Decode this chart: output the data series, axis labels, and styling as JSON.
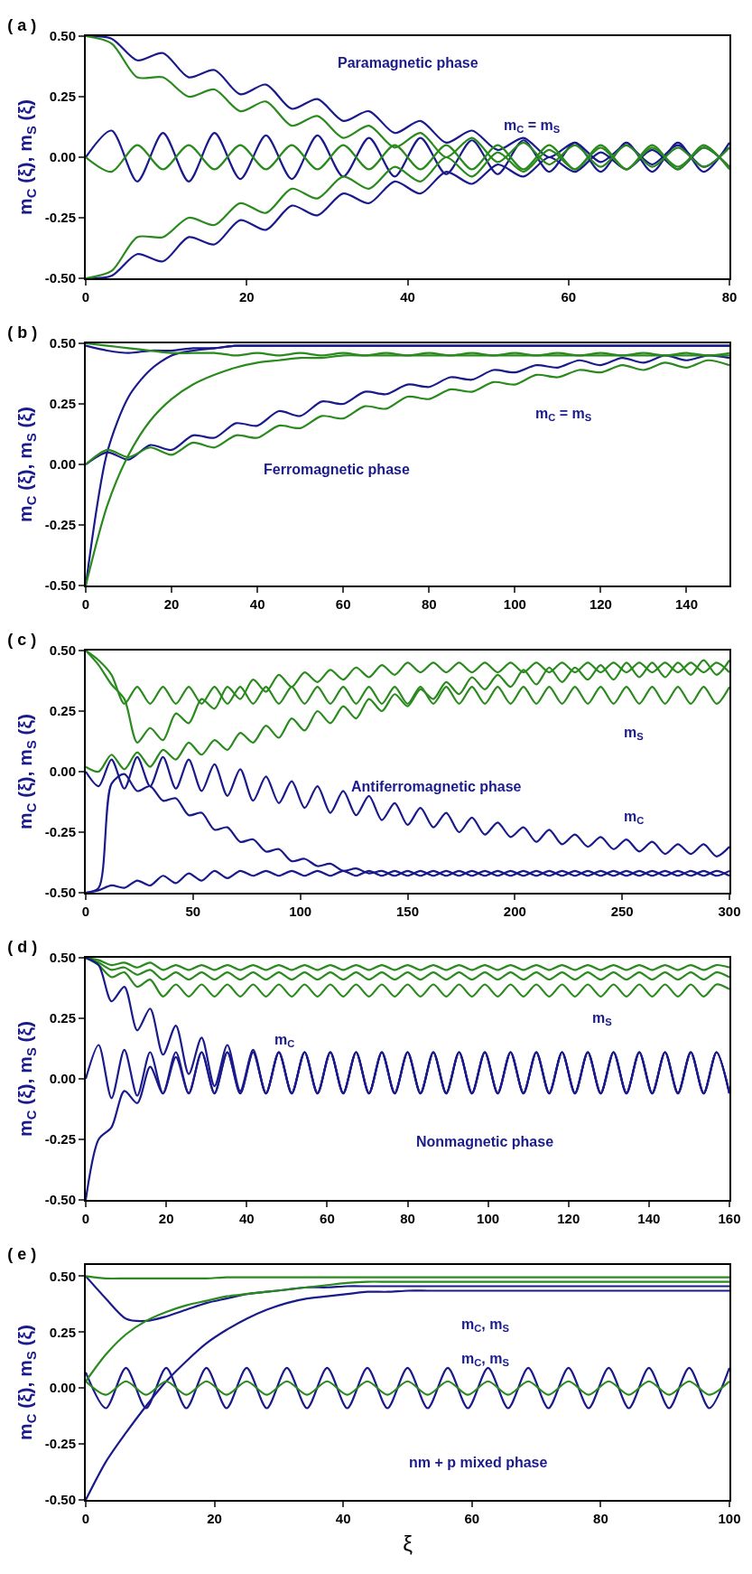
{
  "chart_data": [
    {
      "type": "line",
      "title": "( a )",
      "ylabel": "m$_{C}$ (ξ), m$_{S}$ (ξ)",
      "xlim": [
        0,
        80
      ],
      "xticks": [
        0,
        20,
        40,
        60,
        80
      ],
      "ylim": [
        -0.5,
        0.5
      ],
      "yticks": [
        {
          "value": -0.5,
          "label": "-0.50"
        },
        {
          "value": -0.25,
          "label": "-0.25"
        },
        {
          "value": 0,
          "label": "0.00"
        },
        {
          "value": 0.25,
          "label": "0.25"
        },
        {
          "value": 0.5,
          "label": "0.50"
        }
      ],
      "x": [
        0,
        3.2,
        6.4,
        9.6,
        12.8,
        16,
        19.2,
        22.4,
        25.6,
        28.8,
        32,
        35.2,
        38.4,
        41.6,
        44.8,
        48,
        51.2,
        54.4,
        57.6,
        60.8,
        64,
        67.2,
        70.4,
        73.6,
        76.8,
        80
      ],
      "series": [
        {
          "color": "#1a1a8c",
          "values": [
            0.5,
            0.49,
            0.4,
            0.43,
            0.33,
            0.36,
            0.26,
            0.3,
            0.2,
            0.24,
            0.15,
            0.19,
            0.1,
            0.15,
            0.06,
            0.11,
            0.03,
            0.08,
            0,
            0.06,
            -0.02,
            0.05,
            -0.03,
            0.05,
            -0.04,
            0.04
          ]
        },
        {
          "color": "#1a1a8c",
          "values": [
            -0.5,
            -0.49,
            -0.4,
            -0.43,
            -0.33,
            -0.36,
            -0.26,
            -0.3,
            -0.2,
            -0.24,
            -0.15,
            -0.19,
            -0.1,
            -0.15,
            -0.06,
            -0.11,
            -0.03,
            -0.08,
            0,
            -0.06,
            0.02,
            -0.05,
            0.03,
            -0.05,
            0.04,
            -0.04
          ]
        },
        {
          "color": "#1a1a8c",
          "values": [
            0,
            0.11,
            -0.1,
            0.1,
            -0.1,
            0.1,
            -0.09,
            0.09,
            -0.09,
            0.09,
            -0.08,
            0.08,
            -0.08,
            0.08,
            -0.07,
            0.07,
            -0.07,
            0.07,
            -0.06,
            0.06,
            -0.06,
            0.06,
            -0.06,
            0.06,
            -0.06,
            0.06
          ]
        },
        {
          "color": "#2a8a1e",
          "values": [
            0.5,
            0.47,
            0.33,
            0.33,
            0.25,
            0.28,
            0.19,
            0.23,
            0.13,
            0.17,
            0.08,
            0.13,
            0.04,
            0.1,
            0,
            0.08,
            -0.02,
            0.06,
            -0.03,
            0.05,
            -0.04,
            0.05,
            -0.04,
            0.04,
            -0.04,
            0.04
          ]
        },
        {
          "color": "#2a8a1e",
          "values": [
            -0.5,
            -0.47,
            -0.33,
            -0.33,
            -0.25,
            -0.28,
            -0.19,
            -0.23,
            -0.13,
            -0.17,
            -0.08,
            -0.13,
            -0.04,
            -0.1,
            0,
            -0.08,
            0.02,
            -0.06,
            0.03,
            -0.05,
            0.04,
            -0.05,
            0.04,
            -0.04,
            0.04,
            -0.04
          ]
        },
        {
          "color": "#2a8a1e",
          "values": [
            0,
            -0.06,
            0.05,
            -0.05,
            0.05,
            -0.05,
            0.05,
            -0.05,
            0.05,
            -0.05,
            0.05,
            -0.05,
            0.05,
            -0.05,
            0.05,
            -0.05,
            0.05,
            -0.05,
            0.05,
            -0.05,
            0.05,
            -0.05,
            0.05,
            -0.05,
            0.05,
            -0.05
          ]
        }
      ],
      "annotations": [
        "Paramagnetic phase",
        "m$_{C}$ = m$_{S}$"
      ]
    },
    {
      "type": "line",
      "title": "( b )",
      "ylabel": "m$_{C}$ (ξ), m$_{S}$ (ξ)",
      "xlim": [
        0,
        150
      ],
      "xticks": [
        0,
        20,
        40,
        60,
        80,
        100,
        120,
        140
      ],
      "ylim": [
        -0.5,
        0.5
      ],
      "yticks": [
        {
          "value": -0.5,
          "label": "-0.50"
        },
        {
          "value": -0.25,
          "label": "-0.25"
        },
        {
          "value": 0,
          "label": "0.00"
        },
        {
          "value": 0.25,
          "label": "0.25"
        },
        {
          "value": 0.5,
          "label": "0.50"
        }
      ],
      "x": [
        0,
        5,
        10,
        15,
        20,
        25,
        30,
        35,
        40,
        45,
        50,
        55,
        60,
        65,
        70,
        75,
        80,
        85,
        90,
        95,
        100,
        105,
        110,
        115,
        120,
        125,
        130,
        135,
        140,
        145,
        150
      ],
      "series": [
        {
          "color": "#1a1a8c",
          "values": [
            -0.5,
            0.05,
            0.28,
            0.39,
            0.45,
            0.47,
            0.48,
            0.49,
            0.49,
            0.49,
            0.49,
            0.49,
            0.49,
            0.49,
            0.49,
            0.49,
            0.49,
            0.49,
            0.49,
            0.49,
            0.49,
            0.49,
            0.49,
            0.49,
            0.49,
            0.49,
            0.49,
            0.49,
            0.49,
            0.49,
            0.49
          ]
        },
        {
          "color": "#1a1a8c",
          "values": [
            0.49,
            0.47,
            0.46,
            0.47,
            0.47,
            0.48,
            0.48,
            0.49,
            0.49,
            0.49,
            0.49,
            0.49,
            0.49,
            0.49,
            0.49,
            0.49,
            0.49,
            0.49,
            0.49,
            0.49,
            0.49,
            0.49,
            0.49,
            0.49,
            0.49,
            0.49,
            0.49,
            0.49,
            0.49,
            0.49,
            0.49
          ]
        },
        {
          "color": "#1a1a8c",
          "values": [
            0,
            0.05,
            0.02,
            0.08,
            0.06,
            0.12,
            0.11,
            0.17,
            0.16,
            0.22,
            0.2,
            0.26,
            0.25,
            0.3,
            0.29,
            0.33,
            0.32,
            0.36,
            0.35,
            0.39,
            0.38,
            0.41,
            0.4,
            0.43,
            0.41,
            0.44,
            0.42,
            0.45,
            0.43,
            0.45,
            0.44
          ]
        },
        {
          "color": "#2a8a1e",
          "values": [
            -0.5,
            -0.17,
            0.04,
            0.18,
            0.27,
            0.33,
            0.37,
            0.4,
            0.42,
            0.43,
            0.44,
            0.44,
            0.45,
            0.45,
            0.45,
            0.45,
            0.45,
            0.45,
            0.45,
            0.45,
            0.45,
            0.45,
            0.45,
            0.45,
            0.45,
            0.45,
            0.45,
            0.45,
            0.45,
            0.45,
            0.45
          ]
        },
        {
          "color": "#2a8a1e",
          "values": [
            0.5,
            0.49,
            0.48,
            0.47,
            0.46,
            0.46,
            0.46,
            0.45,
            0.46,
            0.45,
            0.46,
            0.45,
            0.46,
            0.45,
            0.46,
            0.45,
            0.46,
            0.45,
            0.46,
            0.45,
            0.46,
            0.45,
            0.46,
            0.45,
            0.46,
            0.45,
            0.46,
            0.45,
            0.46,
            0.45,
            0.46
          ]
        },
        {
          "color": "#2a8a1e",
          "values": [
            0,
            0.06,
            0.03,
            0.07,
            0.04,
            0.09,
            0.07,
            0.12,
            0.11,
            0.16,
            0.15,
            0.2,
            0.19,
            0.24,
            0.23,
            0.28,
            0.27,
            0.31,
            0.3,
            0.34,
            0.33,
            0.37,
            0.36,
            0.39,
            0.38,
            0.41,
            0.39,
            0.42,
            0.4,
            0.43,
            0.41
          ]
        }
      ],
      "annotations": [
        "Ferromagnetic phase",
        "m$_{C}$ = m$_{S}$"
      ]
    },
    {
      "type": "line",
      "title": "( c )",
      "ylabel": "m$_{C}$ (ξ), m$_{S}$ (ξ)",
      "xlim": [
        0,
        300
      ],
      "xticks": [
        0,
        50,
        100,
        150,
        200,
        250,
        300
      ],
      "ylim": [
        -0.5,
        0.5
      ],
      "yticks": [
        {
          "value": -0.5,
          "label": "-0.50"
        },
        {
          "value": -0.25,
          "label": "-0.25"
        },
        {
          "value": 0,
          "label": "0.00"
        },
        {
          "value": 0.25,
          "label": "0.25"
        },
        {
          "value": 0.5,
          "label": "0.50"
        }
      ],
      "x": [
        0,
        6,
        12,
        18,
        24,
        30,
        36,
        42,
        48,
        54,
        60,
        66,
        72,
        78,
        84,
        90,
        96,
        102,
        108,
        114,
        120,
        126,
        132,
        138,
        144,
        150,
        156,
        162,
        168,
        174,
        180,
        186,
        192,
        198,
        204,
        210,
        216,
        222,
        228,
        234,
        240,
        246,
        252,
        258,
        264,
        270,
        276,
        282,
        288,
        294,
        300
      ],
      "series": [
        {
          "color": "#2a8a1e",
          "values": [
            0.5,
            0.46,
            0.4,
            0.28,
            0.35,
            0.28,
            0.35,
            0.28,
            0.35,
            0.28,
            0.35,
            0.28,
            0.35,
            0.28,
            0.35,
            0.28,
            0.35,
            0.28,
            0.35,
            0.28,
            0.35,
            0.28,
            0.35,
            0.28,
            0.35,
            0.28,
            0.35,
            0.28,
            0.35,
            0.28,
            0.35,
            0.28,
            0.35,
            0.28,
            0.35,
            0.28,
            0.35,
            0.28,
            0.35,
            0.28,
            0.35,
            0.28,
            0.35,
            0.28,
            0.35,
            0.28,
            0.35,
            0.28,
            0.35,
            0.28,
            0.35
          ]
        },
        {
          "color": "#2a8a1e",
          "values": [
            0.5,
            0.44,
            0.36,
            0.3,
            0.12,
            0.18,
            0.13,
            0.24,
            0.2,
            0.3,
            0.26,
            0.35,
            0.3,
            0.38,
            0.33,
            0.4,
            0.35,
            0.41,
            0.37,
            0.42,
            0.38,
            0.43,
            0.39,
            0.44,
            0.4,
            0.45,
            0.41,
            0.45,
            0.41,
            0.45,
            0.41,
            0.45,
            0.41,
            0.45,
            0.41,
            0.45,
            0.41,
            0.45,
            0.41,
            0.45,
            0.41,
            0.45,
            0.41,
            0.45,
            0.41,
            0.45,
            0.41,
            0.45,
            0.41,
            0.45,
            0.41
          ]
        },
        {
          "color": "#2a8a1e",
          "values": [
            0.02,
            0,
            0.07,
            0.01,
            0.08,
            0.02,
            0.09,
            0.05,
            0.12,
            0.07,
            0.13,
            0.09,
            0.16,
            0.12,
            0.19,
            0.14,
            0.22,
            0.17,
            0.25,
            0.2,
            0.27,
            0.22,
            0.3,
            0.25,
            0.32,
            0.27,
            0.34,
            0.3,
            0.37,
            0.32,
            0.39,
            0.34,
            0.4,
            0.35,
            0.42,
            0.36,
            0.43,
            0.37,
            0.43,
            0.38,
            0.44,
            0.38,
            0.45,
            0.39,
            0.45,
            0.39,
            0.45,
            0.4,
            0.46,
            0.4,
            0.46
          ]
        },
        {
          "color": "#1a1a8c",
          "values": [
            -0.5,
            -0.48,
            -0.05,
            -0.01,
            -0.08,
            -0.06,
            -0.12,
            -0.11,
            -0.18,
            -0.17,
            -0.24,
            -0.23,
            -0.29,
            -0.28,
            -0.33,
            -0.32,
            -0.37,
            -0.36,
            -0.39,
            -0.38,
            -0.41,
            -0.4,
            -0.42,
            -0.41,
            -0.43,
            -0.41,
            -0.43,
            -0.41,
            -0.43,
            -0.41,
            -0.43,
            -0.41,
            -0.43,
            -0.41,
            -0.43,
            -0.41,
            -0.43,
            -0.41,
            -0.43,
            -0.41,
            -0.43,
            -0.41,
            -0.43,
            -0.41,
            -0.43,
            -0.41,
            -0.43,
            -0.41,
            -0.43,
            -0.41,
            -0.43
          ]
        },
        {
          "color": "#1a1a8c",
          "values": [
            0,
            -0.06,
            0.05,
            -0.07,
            0.06,
            -0.06,
            0.06,
            -0.07,
            0.05,
            -0.08,
            0.03,
            -0.1,
            0.01,
            -0.12,
            -0.02,
            -0.13,
            -0.04,
            -0.15,
            -0.06,
            -0.17,
            -0.08,
            -0.18,
            -0.1,
            -0.2,
            -0.13,
            -0.22,
            -0.15,
            -0.23,
            -0.17,
            -0.25,
            -0.19,
            -0.26,
            -0.21,
            -0.27,
            -0.23,
            -0.29,
            -0.24,
            -0.3,
            -0.26,
            -0.31,
            -0.27,
            -0.32,
            -0.28,
            -0.33,
            -0.29,
            -0.34,
            -0.3,
            -0.34,
            -0.3,
            -0.35,
            -0.31
          ]
        },
        {
          "color": "#1a1a8c",
          "values": [
            -0.5,
            -0.49,
            -0.47,
            -0.48,
            -0.45,
            -0.47,
            -0.43,
            -0.46,
            -0.42,
            -0.45,
            -0.41,
            -0.44,
            -0.41,
            -0.43,
            -0.41,
            -0.43,
            -0.41,
            -0.43,
            -0.41,
            -0.43,
            -0.41,
            -0.43,
            -0.41,
            -0.43,
            -0.41,
            -0.43,
            -0.41,
            -0.43,
            -0.41,
            -0.43,
            -0.41,
            -0.43,
            -0.41,
            -0.43,
            -0.41,
            -0.43,
            -0.41,
            -0.43,
            -0.41,
            -0.43,
            -0.41,
            -0.43,
            -0.41,
            -0.43,
            -0.41,
            -0.43,
            -0.41,
            -0.43,
            -0.41,
            -0.43,
            -0.41
          ]
        }
      ],
      "annotations": [
        "m$_{S}$",
        "Antiferromagnetic phase",
        "m$_{C}$"
      ]
    },
    {
      "type": "line",
      "title": "( d )",
      "ylabel": "m$_{C}$ (ξ), m$_{S}$ (ξ)",
      "xlim": [
        0,
        160
      ],
      "xticks": [
        0,
        20,
        40,
        60,
        80,
        100,
        120,
        140,
        160
      ],
      "ylim": [
        -0.5,
        0.5
      ],
      "yticks": [
        {
          "value": -0.5,
          "label": "-0.50"
        },
        {
          "value": -0.25,
          "label": "-0.25"
        },
        {
          "value": 0,
          "label": "0.00"
        },
        {
          "value": 0.25,
          "label": "0.25"
        },
        {
          "value": 0.5,
          "label": "0.50"
        }
      ],
      "x": [
        0,
        3.2,
        6.4,
        9.6,
        12.8,
        16,
        19.2,
        22.4,
        25.6,
        28.8,
        32,
        35.2,
        38.4,
        41.6,
        44.8,
        48,
        51.2,
        54.4,
        57.6,
        60.8,
        64,
        67.2,
        70.4,
        73.6,
        76.8,
        80,
        83.2,
        86.4,
        89.6,
        92.8,
        96,
        99.2,
        102.4,
        105.6,
        108.8,
        112,
        115.2,
        118.4,
        121.6,
        124.8,
        128,
        131.2,
        134.4,
        137.6,
        140.8,
        144,
        147.2,
        150.4,
        153.6,
        156.8,
        160
      ],
      "series": [
        {
          "color": "#2a8a1e",
          "values": [
            0.5,
            0.49,
            0.47,
            0.48,
            0.46,
            0.48,
            0.45,
            0.47,
            0.45,
            0.47,
            0.45,
            0.47,
            0.45,
            0.47,
            0.45,
            0.47,
            0.45,
            0.47,
            0.45,
            0.47,
            0.45,
            0.47,
            0.45,
            0.47,
            0.45,
            0.47,
            0.45,
            0.47,
            0.45,
            0.47,
            0.45,
            0.47,
            0.45,
            0.47,
            0.45,
            0.47,
            0.45,
            0.47,
            0.45,
            0.47,
            0.45,
            0.47,
            0.45,
            0.47,
            0.45,
            0.47,
            0.45,
            0.47,
            0.45,
            0.47,
            0.46
          ]
        },
        {
          "color": "#2a8a1e",
          "values": [
            0.5,
            0.48,
            0.45,
            0.46,
            0.43,
            0.45,
            0.41,
            0.44,
            0.41,
            0.44,
            0.41,
            0.44,
            0.41,
            0.44,
            0.41,
            0.44,
            0.41,
            0.44,
            0.41,
            0.44,
            0.41,
            0.44,
            0.41,
            0.44,
            0.41,
            0.44,
            0.41,
            0.44,
            0.41,
            0.44,
            0.41,
            0.44,
            0.41,
            0.44,
            0.41,
            0.44,
            0.41,
            0.44,
            0.41,
            0.44,
            0.41,
            0.44,
            0.41,
            0.44,
            0.41,
            0.44,
            0.41,
            0.44,
            0.41,
            0.44,
            0.42
          ]
        },
        {
          "color": "#2a8a1e",
          "values": [
            0.5,
            0.47,
            0.42,
            0.44,
            0.38,
            0.41,
            0.34,
            0.39,
            0.34,
            0.39,
            0.34,
            0.39,
            0.34,
            0.39,
            0.34,
            0.39,
            0.34,
            0.39,
            0.34,
            0.39,
            0.34,
            0.39,
            0.34,
            0.39,
            0.34,
            0.39,
            0.34,
            0.39,
            0.34,
            0.39,
            0.34,
            0.39,
            0.34,
            0.39,
            0.34,
            0.39,
            0.34,
            0.39,
            0.34,
            0.39,
            0.34,
            0.39,
            0.34,
            0.39,
            0.34,
            0.39,
            0.34,
            0.39,
            0.34,
            0.39,
            0.37
          ]
        },
        {
          "color": "#1a1a8c",
          "values": [
            0.5,
            0.47,
            0.32,
            0.38,
            0.2,
            0.29,
            0.1,
            0.22,
            0.02,
            0.17,
            -0.03,
            0.14,
            -0.05,
            0.12,
            -0.06,
            0.11,
            -0.06,
            0.11,
            -0.06,
            0.11,
            -0.06,
            0.11,
            -0.06,
            0.11,
            -0.06,
            0.11,
            -0.06,
            0.11,
            -0.06,
            0.11,
            -0.06,
            0.11,
            -0.06,
            0.11,
            -0.06,
            0.11,
            -0.06,
            0.11,
            -0.06,
            0.11,
            -0.06,
            0.11,
            -0.06,
            0.11,
            -0.06,
            0.11,
            -0.06,
            0.11,
            -0.06,
            0.11,
            -0.06
          ]
        },
        {
          "color": "#1a1a8c",
          "values": [
            0,
            0.14,
            -0.08,
            0.12,
            -0.07,
            0.11,
            -0.06,
            0.11,
            -0.06,
            0.11,
            -0.06,
            0.11,
            -0.06,
            0.11,
            -0.06,
            0.11,
            -0.06,
            0.11,
            -0.06,
            0.11,
            -0.06,
            0.11,
            -0.06,
            0.11,
            -0.06,
            0.11,
            -0.06,
            0.11,
            -0.06,
            0.11,
            -0.06,
            0.11,
            -0.06,
            0.11,
            -0.06,
            0.11,
            -0.06,
            0.11,
            -0.06,
            0.11,
            -0.06,
            0.11,
            -0.06,
            0.11,
            -0.06,
            0.11,
            -0.06,
            0.11,
            -0.06,
            0.11,
            -0.06
          ]
        },
        {
          "color": "#1a1a8c",
          "values": [
            -0.5,
            -0.25,
            -0.2,
            -0.05,
            -0.1,
            0.05,
            -0.06,
            0.09,
            -0.06,
            0.11,
            -0.06,
            0.11,
            -0.06,
            0.11,
            -0.06,
            0.11,
            -0.06,
            0.11,
            -0.06,
            0.11,
            -0.06,
            0.11,
            -0.06,
            0.11,
            -0.06,
            0.11,
            -0.06,
            0.11,
            -0.06,
            0.11,
            -0.06,
            0.11,
            -0.06,
            0.11,
            -0.06,
            0.11,
            -0.06,
            0.11,
            -0.06,
            0.11,
            -0.06,
            0.11,
            -0.06,
            0.11,
            -0.06,
            0.11,
            -0.06,
            0.11,
            -0.06,
            0.11,
            -0.06
          ]
        }
      ],
      "annotations": [
        "m$_{C}$",
        "m$_{S}$",
        "Nonmagnetic phase"
      ]
    },
    {
      "type": "line",
      "title": "( e )",
      "ylabel": "m$_{C}$ (ξ), m$_{S}$ (ξ)",
      "xlabel": "ξ",
      "xlim": [
        0,
        100
      ],
      "xticks": [
        0,
        20,
        40,
        60,
        80,
        100
      ],
      "ylim": [
        -0.5,
        0.55
      ],
      "yticks": [
        {
          "value": -0.5,
          "label": "-0.50"
        },
        {
          "value": -0.25,
          "label": "-0.25"
        },
        {
          "value": 0,
          "label": "0.00"
        },
        {
          "value": 0.25,
          "label": "0.25"
        },
        {
          "value": 0.5,
          "label": "0.50"
        }
      ],
      "x": [
        0,
        3.125,
        6.25,
        9.375,
        12.5,
        15.625,
        18.75,
        21.875,
        25,
        28.125,
        31.25,
        34.375,
        37.5,
        40.625,
        43.75,
        46.875,
        50,
        53.125,
        56.25,
        59.375,
        62.5,
        65.625,
        68.75,
        71.875,
        75,
        78.125,
        81.25,
        84.375,
        87.5,
        90.625,
        93.75,
        96.875,
        100
      ],
      "series": [
        {
          "color": "#1a1a8c",
          "values": [
            0.5,
            0.4,
            0.31,
            0.3,
            0.32,
            0.35,
            0.38,
            0.4,
            0.42,
            0.43,
            0.44,
            0.45,
            0.45,
            0.455,
            0.455,
            0.455,
            0.455,
            0.455,
            0.455,
            0.455,
            0.455,
            0.455,
            0.455,
            0.455,
            0.455,
            0.455,
            0.455,
            0.455,
            0.455,
            0.455,
            0.455,
            0.455,
            0.455
          ]
        },
        {
          "color": "#1a1a8c",
          "values": [
            -0.5,
            -0.33,
            -0.2,
            -0.08,
            0.03,
            0.12,
            0.2,
            0.26,
            0.31,
            0.35,
            0.38,
            0.4,
            0.41,
            0.42,
            0.43,
            0.43,
            0.435,
            0.435,
            0.435,
            0.435,
            0.435,
            0.435,
            0.435,
            0.435,
            0.435,
            0.435,
            0.435,
            0.435,
            0.435,
            0.435,
            0.435,
            0.435,
            0.435
          ]
        },
        {
          "color": "#1a1a8c",
          "values": [
            0.07,
            -0.09,
            0.09,
            -0.09,
            0.09,
            -0.09,
            0.09,
            -0.09,
            0.09,
            -0.09,
            0.09,
            -0.09,
            0.09,
            -0.09,
            0.09,
            -0.09,
            0.09,
            -0.09,
            0.09,
            -0.09,
            0.09,
            -0.09,
            0.09,
            -0.09,
            0.09,
            -0.09,
            0.09,
            -0.09,
            0.09,
            -0.09,
            0.09,
            -0.09,
            0.09
          ]
        },
        {
          "color": "#2a8a1e",
          "values": [
            0.5,
            0.49,
            0.49,
            0.49,
            0.49,
            0.49,
            0.49,
            0.495,
            0.495,
            0.495,
            0.495,
            0.495,
            0.495,
            0.495,
            0.495,
            0.495,
            0.495,
            0.495,
            0.495,
            0.495,
            0.495,
            0.495,
            0.495,
            0.495,
            0.495,
            0.495,
            0.495,
            0.495,
            0.495,
            0.495,
            0.495,
            0.495,
            0.495
          ]
        },
        {
          "color": "#2a8a1e",
          "values": [
            0.03,
            0.15,
            0.24,
            0.3,
            0.34,
            0.37,
            0.39,
            0.41,
            0.42,
            0.43,
            0.44,
            0.45,
            0.46,
            0.47,
            0.475,
            0.475,
            0.475,
            0.475,
            0.475,
            0.475,
            0.475,
            0.475,
            0.475,
            0.475,
            0.475,
            0.475,
            0.475,
            0.475,
            0.475,
            0.475,
            0.475,
            0.475,
            0.475
          ]
        },
        {
          "color": "#2a8a1e",
          "values": [
            0.03,
            -0.03,
            0.03,
            -0.03,
            0.03,
            -0.03,
            0.03,
            -0.03,
            0.03,
            -0.03,
            0.03,
            -0.03,
            0.03,
            -0.03,
            0.03,
            -0.03,
            0.03,
            -0.03,
            0.03,
            -0.03,
            0.03,
            -0.03,
            0.03,
            -0.03,
            0.03,
            -0.03,
            0.03,
            -0.03,
            0.03,
            -0.03,
            0.03,
            -0.03,
            0.03
          ]
        }
      ],
      "annotations": [
        "m$_{C}$, m$_{S}$",
        "m$_{C}$, m$_{S}$",
        "nm + p mixed phase"
      ]
    }
  ]
}
